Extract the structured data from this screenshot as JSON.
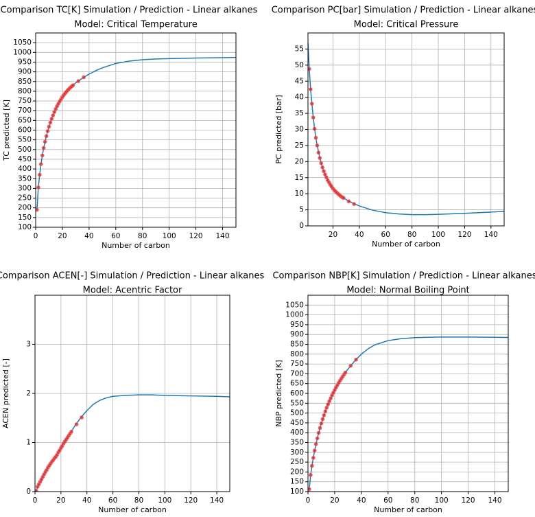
{
  "chart_data": [
    {
      "id": "tc",
      "type": "line",
      "title": "Comparison TC[K] Simulation / Prediction - Linear alkanes",
      "subtitle": "Model: Critical Temperature",
      "xlabel": "Number of carbon",
      "ylabel": "TC predicted [K]",
      "xlim": [
        0,
        150
      ],
      "ylim": [
        100,
        1100
      ],
      "xticks": [
        0,
        20,
        40,
        60,
        80,
        100,
        120,
        140
      ],
      "yticks": [
        100,
        150,
        200,
        250,
        300,
        350,
        400,
        450,
        500,
        550,
        600,
        650,
        700,
        750,
        800,
        850,
        900,
        950,
        1000,
        1050
      ],
      "grid": true,
      "series": [
        {
          "name": "prediction",
          "kind": "line",
          "color": "#1f77b4",
          "x": [
            1,
            2,
            3,
            4,
            5,
            6,
            8,
            10,
            12,
            14,
            16,
            18,
            20,
            22,
            24,
            26,
            28,
            30,
            35,
            40,
            45,
            50,
            60,
            70,
            80,
            90,
            100,
            120,
            140,
            150
          ],
          "y": [
            190,
            305,
            370,
            425,
            470,
            508,
            569,
            618,
            658,
            693,
            723,
            748,
            770,
            789,
            805,
            819,
            831,
            843,
            867,
            888,
            906,
            921,
            943,
            955,
            962,
            966,
            968,
            971,
            973,
            974
          ]
        },
        {
          "name": "simulation",
          "kind": "scatter",
          "color": "#d62728",
          "x": [
            1,
            2,
            3,
            4,
            5,
            6,
            7,
            8,
            9,
            10,
            11,
            12,
            13,
            14,
            15,
            16,
            17,
            18,
            19,
            20,
            21,
            22,
            23,
            24,
            25,
            26,
            27,
            28,
            32,
            36
          ],
          "y": [
            190,
            305,
            370,
            425,
            470,
            508,
            540,
            569,
            595,
            618,
            639,
            658,
            676,
            693,
            709,
            723,
            736,
            748,
            759,
            770,
            780,
            789,
            797,
            805,
            812,
            819,
            825,
            831,
            852,
            872
          ]
        }
      ]
    },
    {
      "id": "pc",
      "type": "line",
      "title": "Comparison PC[bar] Simulation / Prediction - Linear alkanes",
      "subtitle": "Model: Critical Pressure",
      "xlabel": "Number of carbon",
      "ylabel": "PC predicted [bar]",
      "xlim": [
        1,
        150
      ],
      "ylim": [
        0,
        60
      ],
      "xticks": [
        20,
        40,
        60,
        80,
        100,
        120,
        140
      ],
      "yticks": [
        0,
        5,
        10,
        15,
        20,
        25,
        30,
        35,
        40,
        45,
        50,
        55
      ],
      "grid": true,
      "series": [
        {
          "name": "prediction",
          "kind": "line",
          "color": "#1f77b4",
          "x": [
            1,
            2,
            3,
            4,
            5,
            6,
            7,
            8,
            10,
            12,
            14,
            16,
            18,
            20,
            22,
            25,
            28,
            32,
            36,
            40,
            50,
            60,
            70,
            80,
            90,
            100,
            120,
            140,
            150
          ],
          "y": [
            57,
            48.8,
            42.5,
            38,
            33.7,
            30.2,
            27.4,
            25,
            21.1,
            18.2,
            16,
            14.2,
            12.8,
            11.6,
            10.7,
            9.6,
            8.7,
            7.7,
            6.9,
            6.2,
            4.9,
            4.1,
            3.7,
            3.5,
            3.5,
            3.6,
            3.9,
            4.3,
            4.5
          ]
        },
        {
          "name": "simulation",
          "kind": "scatter",
          "color": "#d62728",
          "x": [
            2,
            3,
            4,
            5,
            6,
            7,
            8,
            9,
            10,
            11,
            12,
            13,
            14,
            15,
            16,
            17,
            18,
            19,
            20,
            21,
            22,
            23,
            24,
            25,
            26,
            27,
            28,
            32,
            36
          ],
          "y": [
            48.8,
            42.5,
            38,
            33.7,
            30.2,
            27.4,
            25,
            22.8,
            21.1,
            19.5,
            18.2,
            17,
            16,
            15.1,
            14.2,
            13.5,
            12.8,
            12.2,
            11.6,
            11.1,
            10.7,
            10.3,
            9.9,
            9.6,
            9.2,
            8.9,
            8.7,
            7.6,
            6.8
          ]
        }
      ]
    },
    {
      "id": "acen",
      "type": "line",
      "title": "Comparison ACEN[-] Simulation / Prediction - Linear alkanes",
      "subtitle": "Model: Acentric Factor",
      "xlabel": "Number of carbon",
      "ylabel": "ACEN predicted [-]",
      "xlim": [
        0,
        150
      ],
      "ylim": [
        0,
        4
      ],
      "xticks": [
        0,
        20,
        40,
        60,
        80,
        100,
        120,
        140
      ],
      "yticks": [
        0,
        1,
        2,
        3
      ],
      "grid": true,
      "series": [
        {
          "name": "prediction",
          "kind": "line",
          "color": "#1f77b4",
          "x": [
            1,
            2,
            4,
            6,
            8,
            10,
            12,
            14,
            16,
            18,
            20,
            22,
            24,
            26,
            28,
            30,
            32,
            36,
            40,
            45,
            50,
            55,
            60,
            70,
            80,
            90,
            100,
            120,
            140,
            150
          ],
          "y": [
            0.01,
            0.1,
            0.2,
            0.3,
            0.4,
            0.49,
            0.57,
            0.64,
            0.71,
            0.8,
            0.89,
            0.98,
            1.06,
            1.14,
            1.22,
            1.31,
            1.39,
            1.53,
            1.65,
            1.78,
            1.86,
            1.91,
            1.94,
            1.96,
            1.97,
            1.97,
            1.96,
            1.95,
            1.94,
            1.93
          ]
        },
        {
          "name": "simulation",
          "kind": "scatter",
          "color": "#d62728",
          "x": [
            1,
            2,
            3,
            4,
            5,
            6,
            7,
            8,
            9,
            10,
            11,
            12,
            13,
            14,
            15,
            16,
            17,
            18,
            19,
            20,
            21,
            22,
            23,
            24,
            25,
            26,
            27,
            28,
            32,
            36
          ],
          "y": [
            0.01,
            0.1,
            0.15,
            0.2,
            0.25,
            0.3,
            0.35,
            0.4,
            0.44,
            0.49,
            0.53,
            0.57,
            0.61,
            0.64,
            0.68,
            0.71,
            0.75,
            0.8,
            0.84,
            0.89,
            0.93,
            0.98,
            1.02,
            1.06,
            1.1,
            1.14,
            1.18,
            1.22,
            1.37,
            1.51
          ]
        }
      ]
    },
    {
      "id": "nbp",
      "type": "line",
      "title": "Comparison NBP[K] Simulation / Prediction - Linear alkanes",
      "subtitle": "Model: Normal Boiling Point",
      "xlabel": "Number of carbon",
      "ylabel": "NBP predicted [K]",
      "xlim": [
        0,
        150
      ],
      "ylim": [
        100,
        1100
      ],
      "xticks": [
        0,
        20,
        40,
        60,
        80,
        100,
        120,
        140
      ],
      "yticks": [
        100,
        150,
        200,
        250,
        300,
        350,
        400,
        450,
        500,
        550,
        600,
        650,
        700,
        750,
        800,
        850,
        900,
        950,
        1000,
        1050
      ],
      "grid": true,
      "series": [
        {
          "name": "prediction",
          "kind": "line",
          "color": "#1f77b4",
          "x": [
            1,
            2,
            3,
            4,
            5,
            6,
            8,
            10,
            12,
            14,
            16,
            18,
            20,
            22,
            24,
            26,
            28,
            30,
            35,
            40,
            45,
            50,
            60,
            70,
            80,
            90,
            100,
            110,
            120,
            140,
            150
          ],
          "y": [
            112,
            185,
            231,
            272,
            309,
            342,
            399,
            447,
            489,
            527,
            560,
            590,
            617,
            642,
            665,
            686,
            706,
            724,
            765,
            800,
            827,
            847,
            869,
            879,
            884,
            886,
            887,
            887,
            887,
            886,
            885
          ]
        },
        {
          "name": "simulation",
          "kind": "scatter",
          "color": "#d62728",
          "x": [
            1,
            2,
            3,
            4,
            5,
            6,
            7,
            8,
            9,
            10,
            11,
            12,
            13,
            14,
            15,
            16,
            17,
            18,
            19,
            20,
            21,
            22,
            23,
            24,
            25,
            26,
            27,
            28,
            32,
            36
          ],
          "y": [
            112,
            185,
            231,
            272,
            309,
            342,
            371,
            399,
            424,
            447,
            469,
            489,
            509,
            527,
            544,
            560,
            575,
            590,
            604,
            617,
            630,
            642,
            654,
            665,
            676,
            686,
            696,
            706,
            741,
            772
          ]
        }
      ]
    }
  ]
}
